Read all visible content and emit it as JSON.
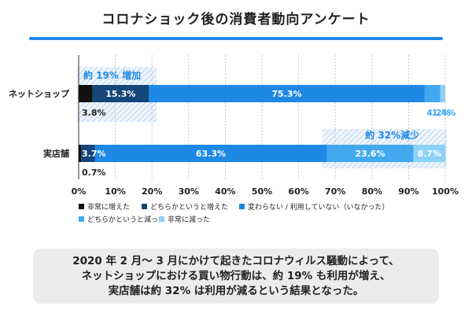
{
  "title": "コロナショック後の消費者動向アンケート",
  "summary": {
    "lines": [
      "2020 年 2 月～ 3 月にかけて起きたコロナウィルス騒動によって、",
      "ネットショップにおける買い物行動は、約 19% も利用が増え、",
      "実店舗は約 32% は利用が減るという結果となった。"
    ]
  },
  "annotations": {
    "increase": "約 19% 増加",
    "decrease": "約 32%減少"
  },
  "chart_data": {
    "type": "bar",
    "orientation": "horizontal",
    "stacked": true,
    "categories": [
      "ネットショップ",
      "実店舗"
    ],
    "series": [
      {
        "name": "非常に増えた",
        "values": [
          3.8,
          0.7
        ],
        "labels": [
          "3.8%",
          "0.7%"
        ],
        "color": "#111111"
      },
      {
        "name": "どちらかというと増えた",
        "values": [
          15.3,
          3.7
        ],
        "labels": [
          "15.3%",
          "3.7%"
        ],
        "color": "#14467a"
      },
      {
        "name": "変わらない / 利用していない（いなかった）",
        "values": [
          75.3,
          63.3
        ],
        "labels": [
          "75.3%",
          "63.3%"
        ],
        "color": "#1e88e5"
      },
      {
        "name": "どちらかというと減った",
        "values": [
          4.2,
          23.6
        ],
        "labels": [
          "4.2%",
          "23.6%"
        ],
        "color": "#42a9f0"
      },
      {
        "name": "非常に減った",
        "values": [
          1.4,
          8.7
        ],
        "labels": [
          "1.4%",
          "8.7%"
        ],
        "color": "#8dd2f8"
      }
    ],
    "xlim": [
      0,
      100
    ],
    "x_ticks": [
      "0%",
      "10%",
      "20%",
      "30%",
      "40%",
      "50%",
      "60%",
      "70%",
      "80%",
      "90%",
      "100%"
    ],
    "legend_position": "bottom-left"
  }
}
